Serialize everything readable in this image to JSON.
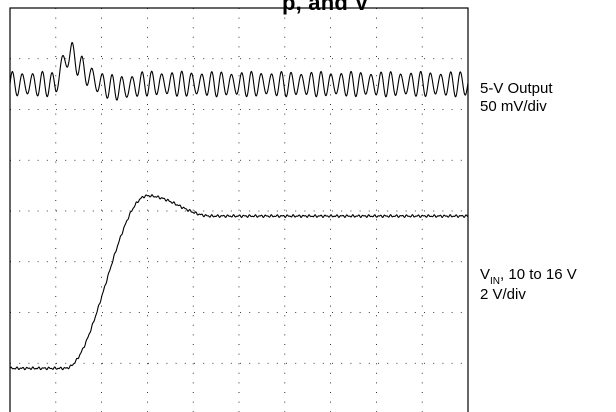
{
  "chart_data": {
    "type": "line",
    "title_partial": "p, and V",
    "x_divisions": 10,
    "y_divisions": 8,
    "grid": true,
    "series": [
      {
        "name": "5-V Output",
        "scale_label": "50 mV/div",
        "description_label": "5-V Output",
        "baseline_div": 6.5,
        "ripple_amplitude_div": 0.22,
        "ripple_periods_per_div": 4.6,
        "transient": {
          "start_div": 1.0,
          "peak_div": 1.35,
          "peak_offset_div": 0.6,
          "settle_div": 3.0,
          "dip_offset_div": -0.15
        }
      },
      {
        "name": "VIN",
        "label_main": "V",
        "label_sub": "IN",
        "label_rest": ", 10 to 16 V",
        "scale_label": "2 V/div",
        "initial_div": 0.9,
        "rise_start_div": 1.2,
        "peak_div": 3.0,
        "peak_value_div": 4.3,
        "final_div": 3.9,
        "settle_end_div": 4.4
      }
    ]
  }
}
